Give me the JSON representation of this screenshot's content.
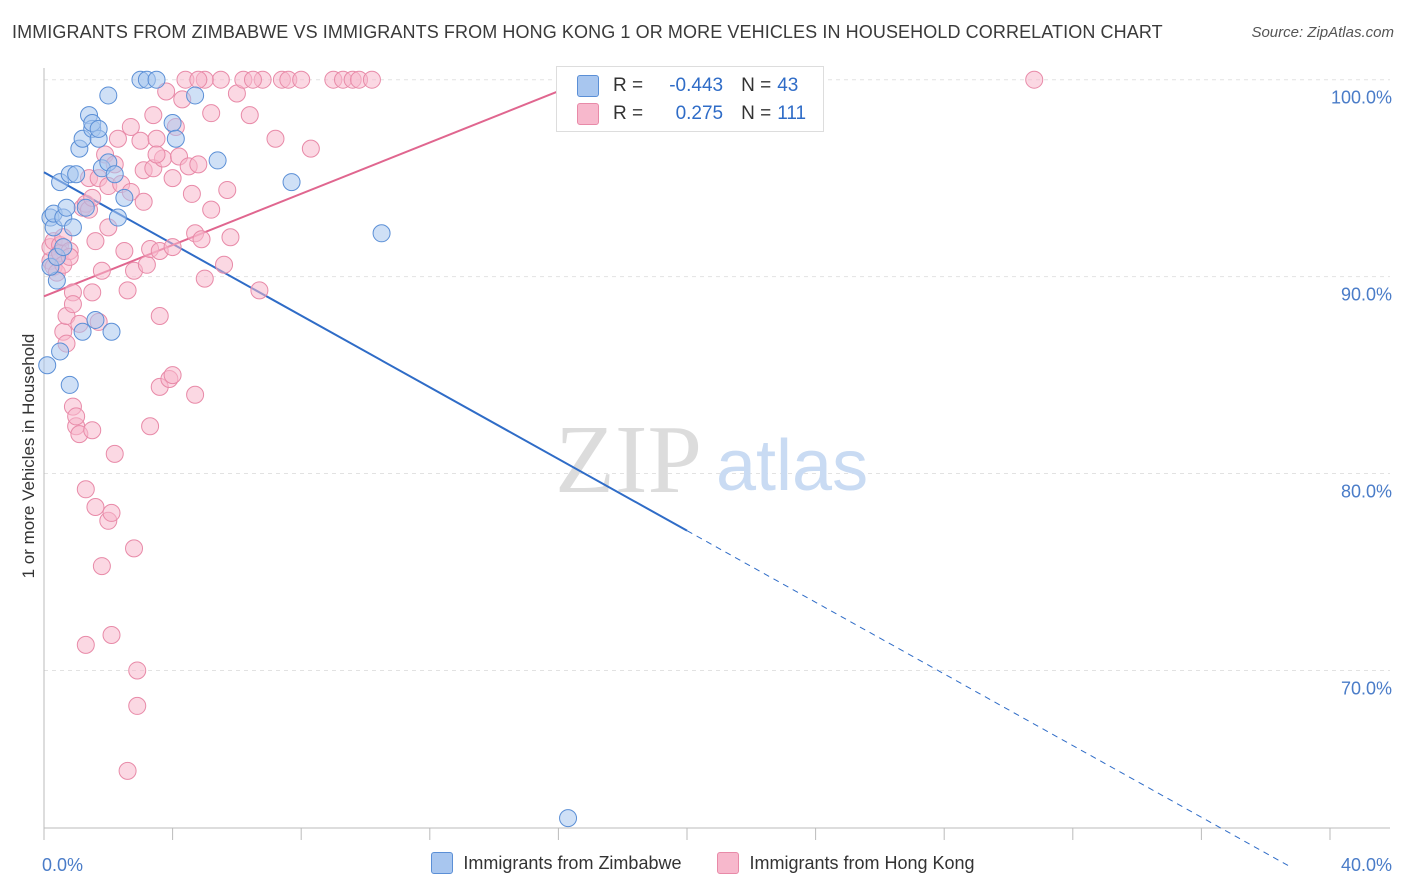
{
  "title": "IMMIGRANTS FROM ZIMBABWE VS IMMIGRANTS FROM HONG KONG 1 OR MORE VEHICLES IN HOUSEHOLD CORRELATION CHART",
  "source": "Source: ZipAtlas.com",
  "watermark": {
    "zip": "ZIP",
    "atlas": "atlas"
  },
  "legend_box": {
    "rows": [
      {
        "r_label": "R =",
        "r_value": "-0.443",
        "n_label": "N =",
        "n_value": "43",
        "color": "#a8c6ef",
        "border": "#5b8fd6"
      },
      {
        "r_label": "R =",
        "r_value": "0.275",
        "n_label": "N =",
        "n_value": "111",
        "color": "#f7b8cc",
        "border": "#e88aa8"
      }
    ]
  },
  "bottom_legend": [
    {
      "label": "Immigrants from Zimbabwe",
      "color": "#a8c6ef",
      "border": "#5b8fd6"
    },
    {
      "label": "Immigrants from Hong Kong",
      "color": "#f7b8cc",
      "border": "#e88aa8"
    }
  ],
  "chart_data": {
    "type": "scatter",
    "xlabel": "",
    "ylabel": "1 or more Vehicles in Household",
    "xlim": [
      0,
      40
    ],
    "ylim": [
      62,
      101
    ],
    "x_tick_labels": [
      {
        "value": 0,
        "label": "0.0%"
      },
      {
        "value": 40,
        "label": "40.0%"
      }
    ],
    "y_tick_labels": [
      {
        "value": 100,
        "label": "100.0%"
      },
      {
        "value": 90,
        "label": "90.0%"
      },
      {
        "value": 80,
        "label": "80.0%"
      },
      {
        "value": 70,
        "label": "70.0%"
      }
    ],
    "grid": true,
    "series": [
      {
        "name": "Immigrants from Zimbabwe",
        "color": "#a8c6ef",
        "stroke": "#5b8fd6",
        "line_color": "#2f6cc7",
        "trend": {
          "x0": 0,
          "y0": 95.3,
          "x1": 20,
          "y1": 77.1,
          "dash_to_x": 38.8,
          "dash_to_y": 60.0
        },
        "points": [
          [
            0.1,
            85.5
          ],
          [
            0.2,
            93.0
          ],
          [
            0.3,
            92.5
          ],
          [
            0.3,
            93.2
          ],
          [
            0.4,
            89.8
          ],
          [
            0.5,
            86.2
          ],
          [
            0.5,
            94.8
          ],
          [
            0.6,
            93.0
          ],
          [
            0.7,
            93.5
          ],
          [
            0.8,
            95.2
          ],
          [
            0.8,
            84.5
          ],
          [
            0.9,
            92.5
          ],
          [
            1.0,
            95.2
          ],
          [
            1.1,
            96.5
          ],
          [
            1.2,
            97.0
          ],
          [
            1.2,
            87.2
          ],
          [
            1.3,
            93.5
          ],
          [
            1.4,
            98.2
          ],
          [
            1.5,
            97.5
          ],
          [
            1.5,
            97.8
          ],
          [
            1.6,
            87.8
          ],
          [
            1.7,
            97.0
          ],
          [
            1.7,
            97.5
          ],
          [
            1.8,
            95.5
          ],
          [
            2.0,
            99.2
          ],
          [
            2.0,
            95.8
          ],
          [
            2.1,
            87.2
          ],
          [
            2.2,
            95.2
          ],
          [
            2.3,
            93.0
          ],
          [
            2.5,
            94.0
          ],
          [
            3.0,
            100.0
          ],
          [
            3.2,
            100.0
          ],
          [
            3.5,
            100.0
          ],
          [
            4.0,
            97.8
          ],
          [
            4.1,
            97.0
          ],
          [
            4.7,
            99.2
          ],
          [
            5.4,
            95.9
          ],
          [
            7.7,
            94.8
          ],
          [
            10.5,
            92.2
          ],
          [
            16.3,
            62.5
          ],
          [
            0.2,
            90.5
          ],
          [
            0.4,
            91.0
          ],
          [
            0.6,
            91.5
          ]
        ]
      },
      {
        "name": "Immigrants from Hong Kong",
        "color": "#f7b8cc",
        "stroke": "#e88aa8",
        "line_color": "#e0668f",
        "trend": {
          "x0": 0,
          "y0": 89.0,
          "x1": 16.9,
          "y1": 100.0
        },
        "points": [
          [
            0.2,
            90.8
          ],
          [
            0.2,
            91.5
          ],
          [
            0.3,
            90.5
          ],
          [
            0.3,
            91.8
          ],
          [
            0.4,
            91.0
          ],
          [
            0.4,
            90.2
          ],
          [
            0.5,
            91.6
          ],
          [
            0.5,
            91.2
          ],
          [
            0.6,
            92.0
          ],
          [
            0.6,
            90.6
          ],
          [
            0.6,
            87.2
          ],
          [
            0.7,
            88.0
          ],
          [
            0.7,
            86.6
          ],
          [
            0.8,
            91.3
          ],
          [
            0.8,
            91.0
          ],
          [
            0.9,
            89.2
          ],
          [
            0.9,
            88.6
          ],
          [
            0.9,
            83.4
          ],
          [
            1.0,
            82.4
          ],
          [
            1.0,
            82.9
          ],
          [
            1.1,
            82.0
          ],
          [
            1.1,
            87.6
          ],
          [
            1.2,
            93.5
          ],
          [
            1.3,
            93.7
          ],
          [
            1.3,
            79.2
          ],
          [
            1.3,
            71.3
          ],
          [
            1.4,
            95.0
          ],
          [
            1.4,
            93.4
          ],
          [
            1.5,
            82.2
          ],
          [
            1.5,
            89.2
          ],
          [
            1.5,
            94.0
          ],
          [
            1.6,
            91.8
          ],
          [
            1.6,
            78.3
          ],
          [
            1.7,
            95.0
          ],
          [
            1.7,
            87.7
          ],
          [
            1.8,
            75.3
          ],
          [
            1.8,
            90.3
          ],
          [
            1.9,
            96.2
          ],
          [
            2.0,
            94.6
          ],
          [
            2.0,
            92.5
          ],
          [
            2.0,
            77.6
          ],
          [
            2.1,
            78.0
          ],
          [
            2.1,
            71.8
          ],
          [
            2.2,
            95.7
          ],
          [
            2.2,
            81.0
          ],
          [
            2.3,
            97.0
          ],
          [
            2.4,
            94.7
          ],
          [
            2.5,
            91.3
          ],
          [
            2.6,
            89.3
          ],
          [
            2.6,
            64.9
          ],
          [
            2.7,
            97.6
          ],
          [
            2.7,
            94.3
          ],
          [
            2.8,
            90.3
          ],
          [
            2.8,
            76.2
          ],
          [
            2.9,
            70.0
          ],
          [
            2.9,
            68.2
          ],
          [
            3.0,
            96.9
          ],
          [
            3.1,
            95.4
          ],
          [
            3.1,
            93.8
          ],
          [
            3.2,
            90.6
          ],
          [
            3.3,
            91.4
          ],
          [
            3.3,
            82.4
          ],
          [
            3.4,
            98.2
          ],
          [
            3.4,
            95.5
          ],
          [
            3.5,
            97.0
          ],
          [
            3.6,
            91.3
          ],
          [
            3.6,
            88.0
          ],
          [
            3.6,
            84.4
          ],
          [
            3.7,
            96.0
          ],
          [
            3.8,
            99.4
          ],
          [
            3.9,
            84.8
          ],
          [
            4.0,
            95.0
          ],
          [
            4.0,
            91.5
          ],
          [
            4.0,
            85.0
          ],
          [
            4.1,
            97.6
          ],
          [
            4.2,
            96.1
          ],
          [
            4.3,
            99.0
          ],
          [
            4.4,
            100.0
          ],
          [
            4.5,
            95.6
          ],
          [
            4.6,
            94.2
          ],
          [
            4.7,
            92.2
          ],
          [
            4.7,
            84.0
          ],
          [
            4.8,
            95.7
          ],
          [
            4.9,
            91.9
          ],
          [
            5.0,
            89.9
          ],
          [
            5.2,
            93.4
          ],
          [
            5.2,
            98.3
          ],
          [
            5.5,
            100.0
          ],
          [
            5.6,
            90.6
          ],
          [
            5.7,
            94.4
          ],
          [
            5.8,
            92.0
          ],
          [
            6.0,
            99.3
          ],
          [
            6.2,
            100.0
          ],
          [
            6.4,
            98.2
          ],
          [
            6.7,
            89.3
          ],
          [
            6.8,
            100.0
          ],
          [
            7.2,
            97.0
          ],
          [
            7.4,
            100.0
          ],
          [
            7.6,
            100.0
          ],
          [
            8.0,
            100.0
          ],
          [
            8.3,
            96.5
          ],
          [
            9.0,
            100.0
          ],
          [
            9.3,
            100.0
          ],
          [
            9.6,
            100.0
          ],
          [
            9.8,
            100.0
          ],
          [
            10.2,
            100.0
          ],
          [
            30.8,
            100.0
          ],
          [
            5.0,
            100.0
          ],
          [
            4.8,
            100.0
          ],
          [
            6.5,
            100.0
          ],
          [
            3.5,
            96.2
          ]
        ]
      }
    ]
  }
}
